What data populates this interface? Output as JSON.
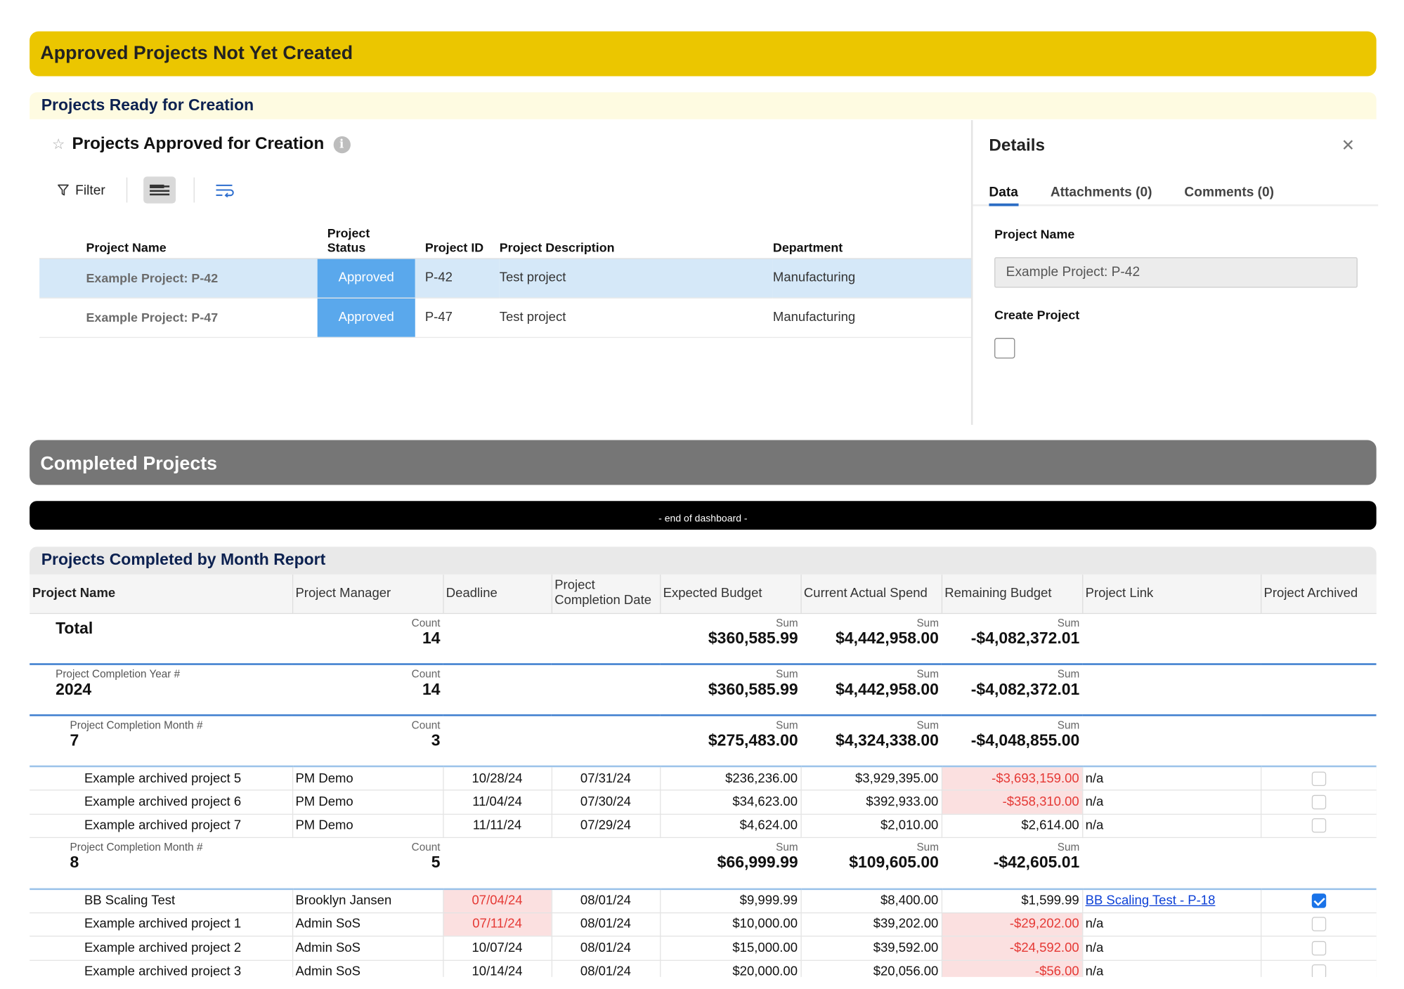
{
  "banners": {
    "approved": "Approved Projects Not Yet Created",
    "completed": "Completed Projects",
    "end": "- end of dashboard -"
  },
  "ready": {
    "title": "Projects Ready for Creation",
    "grid_title": "Projects Approved for Creation",
    "filter_label": "Filter",
    "columns": {
      "name": "Project Name",
      "status": "Project Status",
      "id": "Project ID",
      "desc": "Project Description",
      "dept": "Department"
    },
    "rows": [
      {
        "name": "Example Project: P-42",
        "status": "Approved",
        "id": "P-42",
        "desc": "Test project",
        "dept": "Manufacturing"
      },
      {
        "name": "Example Project: P-47",
        "status": "Approved",
        "id": "P-47",
        "desc": "Test project",
        "dept": "Manufacturing"
      }
    ]
  },
  "details": {
    "title": "Details",
    "tabs": [
      "Data",
      "Attachments (0)",
      "Comments (0)"
    ],
    "field1_label": "Project Name",
    "field1_value": "Example Project: P-42",
    "field2_label": "Create Project"
  },
  "report": {
    "title": "Projects Completed by Month Report",
    "columns": [
      "Project Name",
      "Project Manager",
      "Deadline",
      "Project Completion Date",
      "Expected Budget",
      "Current Actual Spend",
      "Remaining Budget",
      "Project Link",
      "Project Archived"
    ],
    "count_label": "Count",
    "sum_label": "Sum",
    "total": {
      "label": "Total",
      "count": "14",
      "expected": "$360,585.99",
      "actual": "$4,442,958.00",
      "remaining": "-$4,082,372.01"
    },
    "year": {
      "label": "Project Completion Year #",
      "value": "2024",
      "count": "14",
      "expected": "$360,585.99",
      "actual": "$4,442,958.00",
      "remaining": "-$4,082,372.01"
    },
    "month7": {
      "label": "Project Completion Month #",
      "value": "7",
      "count": "3",
      "expected": "$275,483.00",
      "actual": "$4,324,338.00",
      "remaining": "-$4,048,855.00"
    },
    "rows7": [
      {
        "name": "Example archived project 5",
        "pm": "PM Demo",
        "deadline": "10/28/24",
        "completion": "07/31/24",
        "expected": "$236,236.00",
        "actual": "$3,929,395.00",
        "remaining": "-$3,693,159.00",
        "link": "n/a"
      },
      {
        "name": "Example archived project 6",
        "pm": "PM Demo",
        "deadline": "11/04/24",
        "completion": "07/30/24",
        "expected": "$34,623.00",
        "actual": "$392,933.00",
        "remaining": "-$358,310.00",
        "link": "n/a"
      },
      {
        "name": "Example archived project 7",
        "pm": "PM Demo",
        "deadline": "11/11/24",
        "completion": "07/29/24",
        "expected": "$4,624.00",
        "actual": "$2,010.00",
        "remaining": "$2,614.00",
        "link": "n/a"
      }
    ],
    "month8": {
      "label": "Project Completion Month #",
      "value": "8",
      "count": "5",
      "expected": "$66,999.99",
      "actual": "$109,605.00",
      "remaining": "-$42,605.01"
    },
    "rows8": [
      {
        "name": "BB Scaling Test",
        "pm": "Brooklyn Jansen",
        "deadline": "07/04/24",
        "completion": "08/01/24",
        "expected": "$9,999.99",
        "actual": "$8,400.00",
        "remaining": "$1,599.99",
        "link": "BB Scaling Test - P-18"
      },
      {
        "name": "Example archived project 1",
        "pm": "Admin SoS",
        "deadline": "07/11/24",
        "completion": "08/01/24",
        "expected": "$10,000.00",
        "actual": "$39,202.00",
        "remaining": "-$29,202.00",
        "link": "n/a"
      },
      {
        "name": "Example archived project 2",
        "pm": "Admin SoS",
        "deadline": "10/07/24",
        "completion": "08/01/24",
        "expected": "$15,000.00",
        "actual": "$39,592.00",
        "remaining": "-$24,592.00",
        "link": "n/a"
      },
      {
        "name": "Example archived project 3",
        "pm": "Admin SoS",
        "deadline": "10/14/24",
        "completion": "08/01/24",
        "expected": "$20,000.00",
        "actual": "$20,056.00",
        "remaining": "-$56.00",
        "link": "n/a"
      }
    ]
  },
  "colors": {
    "yellow_banner": "#ebc600",
    "gray_banner": "#767676",
    "status_blue": "#5aa8ec",
    "selected_row": "#d5e8f8",
    "negative_red": "#e53935"
  },
  "icons": [
    "star-icon",
    "info-icon",
    "filter-icon",
    "row-height-icon",
    "wrap-text-icon",
    "close-icon",
    "checkbox-icon"
  ]
}
